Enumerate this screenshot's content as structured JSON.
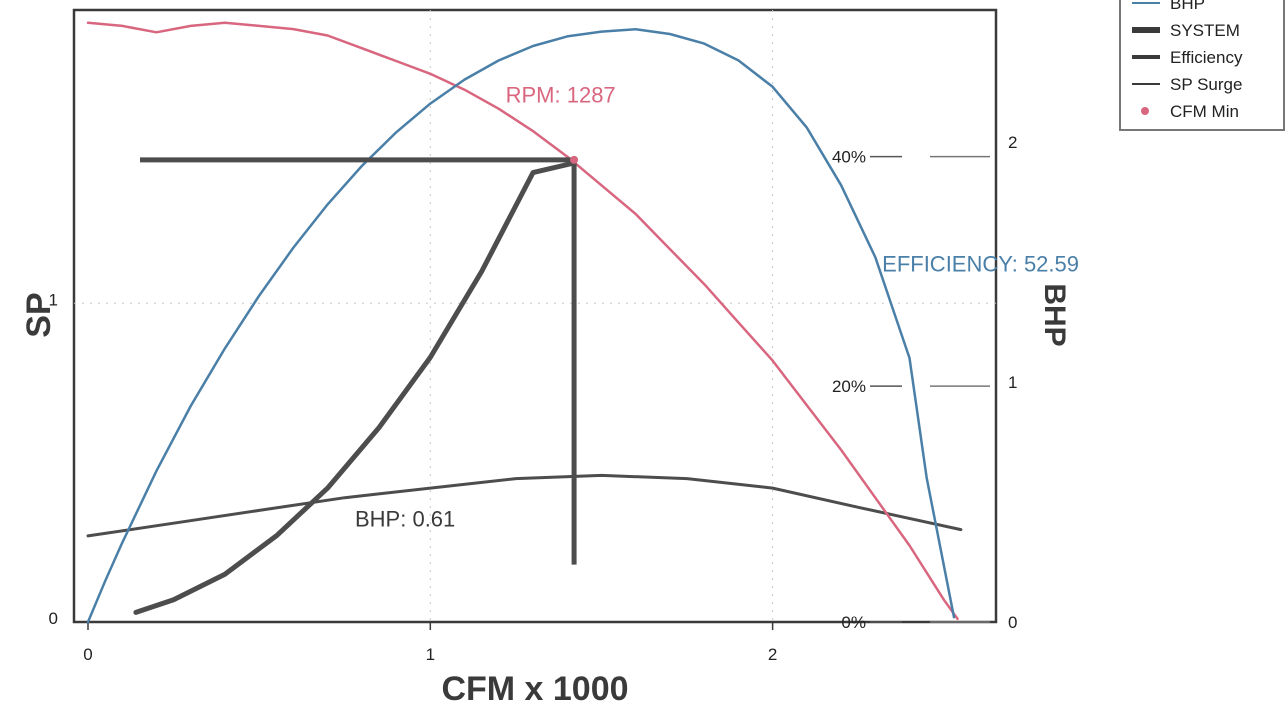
{
  "chart_data": {
    "type": "line",
    "xlabel": "CFM x 1000",
    "ylabel": "SP",
    "y2label": "BHP",
    "xlim": [
      0,
      2.6
    ],
    "ylim": [
      0,
      1.92
    ],
    "y2lim": [
      0,
      2.55
    ],
    "xticks": [
      {
        "value": 0,
        "label": "0"
      },
      {
        "value": 1,
        "label": "1"
      },
      {
        "value": 2,
        "label": "2"
      }
    ],
    "yticks": [
      {
        "value": 0,
        "label": "0"
      },
      {
        "value": 1,
        "label": "1"
      }
    ],
    "y2ticks": [
      {
        "value": 0,
        "label": "0"
      },
      {
        "value": 1,
        "label": "1"
      },
      {
        "value": 2,
        "label": "2"
      }
    ],
    "efficiency_ticks": [
      {
        "sp": 0.0,
        "label": "0%"
      },
      {
        "sp": 0.74,
        "label": "20%"
      },
      {
        "sp": 1.46,
        "label": "40%"
      }
    ],
    "legend": {
      "position": "top-right",
      "entries": [
        {
          "label": "BHP",
          "color": "#4a7fa8",
          "style": "thin-line"
        },
        {
          "label": "SYSTEM",
          "color": "#3a3a3a",
          "style": "thick-line"
        },
        {
          "label": "Efficiency",
          "color": "#3a3a3a",
          "style": "medium-line"
        },
        {
          "label": "SP Surge",
          "color": "#3a3a3a",
          "style": "thin-line"
        },
        {
          "label": "CFM Min",
          "color": "#d9667f",
          "style": "dot"
        }
      ]
    },
    "series": [
      {
        "name": "BHP",
        "axis": "right",
        "color": "#4a7fa8",
        "width": 2.5,
        "x": [
          0,
          0.05,
          0.1,
          0.2,
          0.3,
          0.4,
          0.5,
          0.6,
          0.7,
          0.8,
          0.9,
          1.0,
          1.1,
          1.2,
          1.3,
          1.4,
          1.5,
          1.6,
          1.7,
          1.8,
          1.9,
          2.0,
          2.1,
          2.2,
          2.3,
          2.4,
          2.45,
          2.53
        ],
        "values": [
          0,
          0.17,
          0.33,
          0.63,
          0.9,
          1.14,
          1.36,
          1.56,
          1.74,
          1.9,
          2.04,
          2.16,
          2.26,
          2.34,
          2.4,
          2.44,
          2.46,
          2.47,
          2.45,
          2.41,
          2.34,
          2.23,
          2.06,
          1.82,
          1.52,
          1.1,
          0.6,
          0.02
        ]
      },
      {
        "name": "SP",
        "axis": "left",
        "color": "#d9667f",
        "width": 2.5,
        "x": [
          0,
          0.1,
          0.2,
          0.3,
          0.4,
          0.5,
          0.6,
          0.7,
          0.8,
          0.9,
          1.0,
          1.1,
          1.2,
          1.3,
          1.4,
          1.5,
          1.6,
          1.7,
          1.8,
          1.9,
          2.0,
          2.1,
          2.2,
          2.3,
          2.4,
          2.5,
          2.54
        ],
        "values": [
          1.88,
          1.87,
          1.85,
          1.87,
          1.88,
          1.87,
          1.86,
          1.84,
          1.8,
          1.76,
          1.72,
          1.67,
          1.61,
          1.54,
          1.46,
          1.37,
          1.28,
          1.17,
          1.06,
          0.94,
          0.82,
          0.68,
          0.54,
          0.39,
          0.24,
          0.07,
          0.01
        ]
      },
      {
        "name": "SYSTEM",
        "axis": "left",
        "color": "#4d4d4d",
        "width": 5,
        "x": [
          0.14,
          0.25,
          0.4,
          0.55,
          0.7,
          0.85,
          1.0,
          1.15,
          1.3,
          1.42
        ],
        "values": [
          0.03,
          0.07,
          0.15,
          0.27,
          0.42,
          0.61,
          0.83,
          1.1,
          1.41,
          1.44
        ]
      },
      {
        "name": "Efficiency",
        "axis": "left",
        "color": "#4d4d4d",
        "width": 3,
        "x": [
          0,
          0.25,
          0.5,
          0.75,
          1.0,
          1.25,
          1.5,
          1.75,
          2.0,
          2.25,
          2.55
        ],
        "values": [
          0.27,
          0.31,
          0.35,
          0.39,
          0.42,
          0.45,
          0.46,
          0.45,
          0.42,
          0.36,
          0.29
        ]
      }
    ],
    "operating_point": {
      "x": 1.42,
      "sp": 1.45,
      "system_low_sp": 0.18
    },
    "annotations": [
      {
        "text": "RPM: 1287",
        "color": "#d9667f",
        "x": 1.22,
        "y": 1.63
      },
      {
        "text": "EFFICIENCY: 52.59",
        "color": "#4a7fa8",
        "x": 2.32,
        "y": 1.1
      },
      {
        "text": "BHP: 0.61",
        "color": "#3a3a3a",
        "x": 0.78,
        "y": 0.3
      }
    ]
  }
}
